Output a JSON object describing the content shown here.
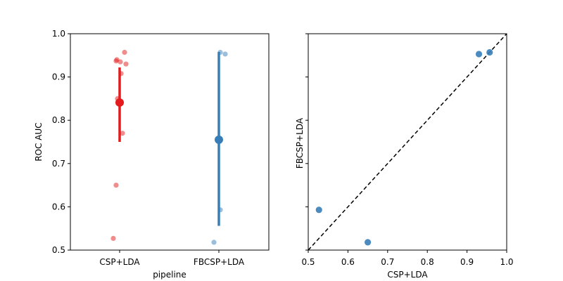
{
  "chart_data": [
    {
      "type": "strip_with_pointplot",
      "xlabel": "pipeline",
      "ylabel": "ROC AUC",
      "ylim": [
        0.5,
        1.0
      ],
      "yticks": [
        "0.5",
        "0.6",
        "0.7",
        "0.8",
        "0.9",
        "1.0"
      ],
      "categories": [
        "CSP+LDA",
        "FBCSP+LDA"
      ],
      "colors": [
        "#e41a1c",
        "#377eb8"
      ],
      "points": [
        [
          0.957,
          0.94,
          0.937,
          0.935,
          0.93,
          0.908,
          0.85,
          0.77,
          0.65,
          0.527
        ],
        [
          0.957,
          0.953,
          0.593,
          0.518
        ]
      ],
      "mean": [
        0.841,
        0.755
      ],
      "ci": [
        [
          0.75,
          0.922
        ],
        [
          0.556,
          0.958
        ]
      ]
    },
    {
      "type": "scatter",
      "xlabel": "CSP+LDA",
      "ylabel": "FBCSP+LDA",
      "xlim": [
        0.5,
        1.0
      ],
      "ylim": [
        0.5,
        1.0
      ],
      "xticks": [
        "0.5",
        "0.6",
        "0.7",
        "0.8",
        "0.9",
        "1.0"
      ],
      "color": "#377eb8",
      "points": [
        {
          "x": 0.527,
          "y": 0.593
        },
        {
          "x": 0.65,
          "y": 0.518
        },
        {
          "x": 0.93,
          "y": 0.953
        },
        {
          "x": 0.957,
          "y": 0.957
        }
      ],
      "diagonal": true
    }
  ]
}
